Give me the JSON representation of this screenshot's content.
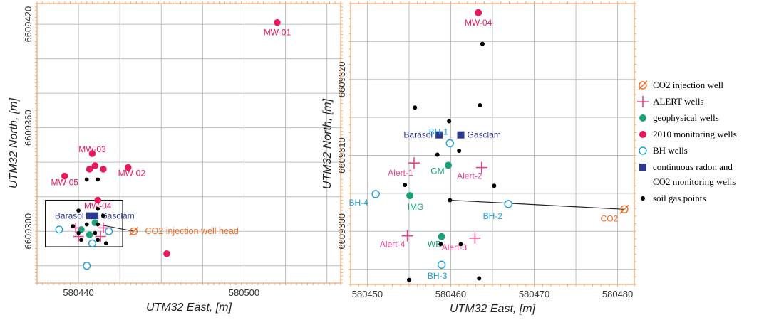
{
  "colors": {
    "monitoring": "#e8195a",
    "alert": "#e8408a",
    "geophysical": "#1aa17a",
    "bh": "#1aa0d8",
    "radon": "#2e3990",
    "injection": "#f26a21",
    "soil": "#000000",
    "frame": "#f4a46a",
    "grid": "#bdbdbd"
  },
  "left_map": {
    "x_axis_title": "UTM32 East, [m]",
    "y_axis_title": "UTM32 North, [m]",
    "x_range": [
      580425,
      580535
    ],
    "y_range": [
      6609270,
      6609432
    ],
    "x_ticks": [
      580440,
      580500
    ],
    "y_ticks": [
      6609300,
      6609360,
      6609420
    ],
    "grid_x": [
      580440,
      580455,
      580470,
      580485,
      580500,
      580515,
      580530
    ],
    "grid_y": [
      6609280,
      6609300,
      6609320,
      6609340,
      6609360,
      6609380,
      6609400,
      6609420
    ],
    "injection_label": "CO2 injection well head",
    "inset_box": {
      "x_min": 580428,
      "x_max": 580456,
      "y_min": 6609291,
      "y_max": 6609318
    }
  },
  "right_map": {
    "x_axis_title": "UTM32 East, [m]",
    "y_axis_title": "UTM32 North, [m]",
    "x_range": [
      580448,
      580482
    ],
    "y_range": [
      6609293,
      6609330
    ],
    "x_ticks": [
      580450,
      580460,
      580470,
      580480
    ],
    "y_ticks": [
      6609300,
      6609310,
      6609320
    ],
    "grid_x": [
      580450,
      580455,
      580460,
      580465,
      580470,
      580475,
      580480
    ],
    "grid_y": [
      6609295,
      6609300,
      6609305,
      6609310,
      6609315,
      6609320,
      6609325
    ],
    "injection_label": "CO2"
  },
  "legend": {
    "items": [
      {
        "label": "CO2 injection well",
        "symbol": "injection"
      },
      {
        "label": "ALERT wells",
        "symbol": "alert"
      },
      {
        "label": "geophysical wells",
        "symbol": "geophysical"
      },
      {
        "label": "2010 monitoring wells",
        "symbol": "monitoring"
      },
      {
        "label": "BH wells",
        "symbol": "bh"
      },
      {
        "label": "continuous radon and",
        "label2": "CO2 monitoring wells",
        "symbol": "radon"
      },
      {
        "label": "soil gas points",
        "symbol": "soil"
      }
    ]
  },
  "chart_data": [
    {
      "type": "scatter",
      "xlabel": "UTM32 East, [m]",
      "ylabel": "UTM32 North, [m]",
      "xlim": [
        580425,
        580535
      ],
      "ylim": [
        6609270,
        6609432
      ],
      "grid": true,
      "series": [
        {
          "name": "2010 monitoring wells",
          "symbol": "monitoring",
          "points": [
            {
              "x": 580512,
              "y": 6609421,
              "label": "MW-01"
            },
            {
              "x": 580445,
              "y": 6609345,
              "label": "MW-03"
            },
            {
              "x": 580458,
              "y": 6609337,
              "label": "MW-02"
            },
            {
              "x": 580435,
              "y": 6609332,
              "label": "MW-05"
            },
            {
              "x": 580447,
              "y": 6609318,
              "label": "MW-04"
            },
            {
              "x": 580446,
              "y": 6609338,
              "label": ""
            },
            {
              "x": 580444,
              "y": 6609336,
              "label": ""
            },
            {
              "x": 580449,
              "y": 6609336,
              "label": ""
            },
            {
              "x": 580472,
              "y": 6609287,
              "label": ""
            }
          ]
        },
        {
          "name": "continuous radon and CO2 monitoring wells",
          "symbol": "radon",
          "points": [
            {
              "x": 580444,
              "y": 6609309,
              "label": "Barasol"
            },
            {
              "x": 580446,
              "y": 6609309,
              "label": "Gasclam"
            }
          ]
        },
        {
          "name": "BH wells",
          "symbol": "bh",
          "points": [
            {
              "x": 580433,
              "y": 6609301,
              "label": ""
            },
            {
              "x": 580451,
              "y": 6609300,
              "label": ""
            },
            {
              "x": 580445,
              "y": 6609293,
              "label": ""
            },
            {
              "x": 580443,
              "y": 6609280,
              "label": ""
            }
          ]
        },
        {
          "name": "geophysical wells",
          "symbol": "geophysical",
          "points": [
            {
              "x": 580446,
              "y": 6609305,
              "label": ""
            },
            {
              "x": 580441,
              "y": 6609301,
              "label": ""
            },
            {
              "x": 580444,
              "y": 6609298,
              "label": ""
            }
          ]
        },
        {
          "name": "ALERT wells",
          "symbol": "alert",
          "points": [
            {
              "x": 580439,
              "y": 6609302,
              "label": ""
            },
            {
              "x": 580449,
              "y": 6609302,
              "label": ""
            },
            {
              "x": 580440,
              "y": 6609297,
              "label": ""
            },
            {
              "x": 580448,
              "y": 6609297,
              "label": ""
            }
          ]
        },
        {
          "name": "CO2 injection well",
          "symbol": "injection",
          "points": [
            {
              "x": 580460,
              "y": 6609300,
              "label": ""
            }
          ]
        },
        {
          "name": "soil gas points",
          "symbol": "soil",
          "points": [
            {
              "x": 580443,
              "y": 6609330,
              "label": ""
            },
            {
              "x": 580447,
              "y": 6609330,
              "label": ""
            },
            {
              "x": 580440,
              "y": 6609312,
              "label": ""
            },
            {
              "x": 580447,
              "y": 6609313,
              "label": ""
            },
            {
              "x": 580449,
              "y": 6609309,
              "label": ""
            },
            {
              "x": 580438,
              "y": 6609303,
              "label": ""
            },
            {
              "x": 580443,
              "y": 6609304,
              "label": ""
            },
            {
              "x": 580447,
              "y": 6609304,
              "label": ""
            },
            {
              "x": 580440,
              "y": 6609299,
              "label": ""
            },
            {
              "x": 580446,
              "y": 6609299,
              "label": ""
            },
            {
              "x": 580441,
              "y": 6609295,
              "label": ""
            },
            {
              "x": 580447,
              "y": 6609295,
              "label": ""
            },
            {
              "x": 580450,
              "y": 6609293,
              "label": ""
            }
          ]
        }
      ]
    },
    {
      "type": "scatter",
      "xlabel": "UTM32 East, [m]",
      "ylabel": "UTM32 North, [m]",
      "xlim": [
        580448,
        580482
      ],
      "ylim": [
        6609293,
        6609330
      ],
      "grid": true,
      "series": [
        {
          "name": "2010 monitoring wells",
          "symbol": "monitoring",
          "points": [
            {
              "x": 580463.3,
              "y": 6609328.8,
              "label": "MW-04"
            }
          ]
        },
        {
          "name": "continuous radon and CO2 monitoring wells",
          "symbol": "radon",
          "points": [
            {
              "x": 580458.6,
              "y": 6609312.7,
              "label": "Barasol"
            },
            {
              "x": 580461.2,
              "y": 6609312.7,
              "label": "Gasclam"
            }
          ]
        },
        {
          "name": "BH wells",
          "symbol": "bh",
          "points": [
            {
              "x": 580459.9,
              "y": 6609311.6,
              "label": "BH-1"
            },
            {
              "x": 580451.0,
              "y": 6609304.9,
              "label": "BH-4"
            },
            {
              "x": 580466.9,
              "y": 6609303.6,
              "label": "BH-2"
            },
            {
              "x": 580458.9,
              "y": 6609295.6,
              "label": "BH-3"
            }
          ]
        },
        {
          "name": "geophysical wells",
          "symbol": "geophysical",
          "points": [
            {
              "x": 580459.7,
              "y": 6609308.7,
              "label": "GM"
            },
            {
              "x": 580455.1,
              "y": 6609304.7,
              "label": "IMG"
            },
            {
              "x": 580458.9,
              "y": 6609299.3,
              "label": "WB"
            }
          ]
        },
        {
          "name": "ALERT wells",
          "symbol": "alert",
          "points": [
            {
              "x": 580455.6,
              "y": 6609309.0,
              "label": "Alert-1"
            },
            {
              "x": 580463.7,
              "y": 6609308.4,
              "label": "Alert-2"
            },
            {
              "x": 580462.9,
              "y": 6609299.1,
              "label": "Alert-3"
            },
            {
              "x": 580454.8,
              "y": 6609299.4,
              "label": "Alert-4"
            }
          ]
        },
        {
          "name": "CO2 injection well",
          "symbol": "injection",
          "points": [
            {
              "x": 580480.8,
              "y": 6609302.9,
              "label": "CO2"
            }
          ]
        },
        {
          "name": "soil gas points",
          "symbol": "soil",
          "points": [
            {
              "x": 580463.8,
              "y": 6609324.7,
              "label": ""
            },
            {
              "x": 580455.7,
              "y": 6609316.3,
              "label": ""
            },
            {
              "x": 580463.5,
              "y": 6609316.6,
              "label": ""
            },
            {
              "x": 580459.8,
              "y": 6609314.5,
              "label": ""
            },
            {
              "x": 580461.0,
              "y": 6609310.6,
              "label": ""
            },
            {
              "x": 580458.4,
              "y": 6609310.1,
              "label": ""
            },
            {
              "x": 580454.5,
              "y": 6609306.1,
              "label": ""
            },
            {
              "x": 580465.2,
              "y": 6609306.0,
              "label": ""
            },
            {
              "x": 580459.9,
              "y": 6609304.1,
              "label": ""
            },
            {
              "x": 580458.8,
              "y": 6609298.3,
              "label": ""
            },
            {
              "x": 580461.2,
              "y": 6609298.3,
              "label": ""
            },
            {
              "x": 580455.0,
              "y": 6609293.6,
              "label": ""
            },
            {
              "x": 580463.4,
              "y": 6609293.8,
              "label": ""
            }
          ]
        }
      ],
      "lines": [
        {
          "from": {
            "x": 580459.9,
            "y": 6609304.1
          },
          "to": {
            "x": 580480.8,
            "y": 6609302.9
          }
        }
      ]
    }
  ]
}
